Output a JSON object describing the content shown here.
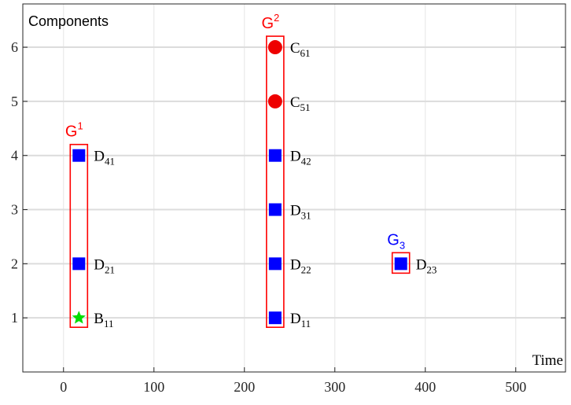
{
  "chart_data": {
    "type": "scatter",
    "ylabel": "Components",
    "xlabel": "Time",
    "xlim": [
      -45,
      555
    ],
    "ylim": [
      0,
      6.8
    ],
    "x_ticks": [
      0,
      100,
      200,
      300,
      400,
      500
    ],
    "y_ticks": [
      1,
      2,
      3,
      4,
      5,
      6
    ],
    "grid": true,
    "points": [
      {
        "x": 17,
        "y": 1,
        "marker": "star",
        "color": "#00dd00",
        "label_main": "B",
        "label_sub": "11"
      },
      {
        "x": 17,
        "y": 2,
        "marker": "square",
        "color": "#0000ff",
        "label_main": "D",
        "label_sub": "21"
      },
      {
        "x": 17,
        "y": 4,
        "marker": "square",
        "color": "#0000ff",
        "label_main": "D",
        "label_sub": "41"
      },
      {
        "x": 234,
        "y": 1,
        "marker": "square",
        "color": "#0000ff",
        "label_main": "D",
        "label_sub": "11"
      },
      {
        "x": 234,
        "y": 2,
        "marker": "square",
        "color": "#0000ff",
        "label_main": "D",
        "label_sub": "22"
      },
      {
        "x": 234,
        "y": 3,
        "marker": "square",
        "color": "#0000ff",
        "label_main": "D",
        "label_sub": "31"
      },
      {
        "x": 234,
        "y": 4,
        "marker": "square",
        "color": "#0000ff",
        "label_main": "D",
        "label_sub": "42"
      },
      {
        "x": 234,
        "y": 5,
        "marker": "circle",
        "color": "#ee0000",
        "label_main": "C",
        "label_sub": "51"
      },
      {
        "x": 234,
        "y": 6,
        "marker": "circle",
        "color": "#ee0000",
        "label_main": "C",
        "label_sub": "61"
      },
      {
        "x": 373,
        "y": 2,
        "marker": "square",
        "color": "#0000ff",
        "label_main": "D",
        "label_sub": "23"
      }
    ],
    "groups": [
      {
        "label_main": "G",
        "label_script": "1",
        "script": "sup",
        "color": "#ff0000",
        "x": 17,
        "y_min": 1,
        "y_max": 4
      },
      {
        "label_main": "G",
        "label_script": "2",
        "script": "sup",
        "color": "#ff0000",
        "x": 234,
        "y_min": 1,
        "y_max": 6
      },
      {
        "label_main": "G",
        "label_script": "3",
        "script": "sub",
        "color": "#0000ff",
        "x": 373,
        "y_min": 2,
        "y_max": 2
      }
    ],
    "group_box_color": "#ff0000"
  }
}
